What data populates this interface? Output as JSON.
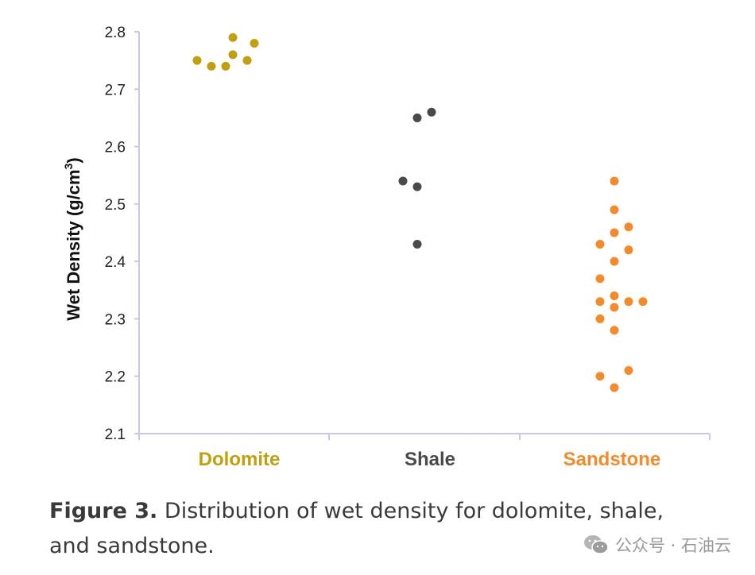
{
  "chart_data": {
    "type": "scatter",
    "ylabel": "Wet Density (g/cm",
    "ylabel_sup": "3",
    "ylabel_close": ")",
    "ylim": [
      2.1,
      2.8
    ],
    "yticks": [
      "2.1",
      "2.2",
      "2.3",
      "2.4",
      "2.5",
      "2.6",
      "2.7",
      "2.8"
    ],
    "grid": false,
    "categories": [
      "Dolomite",
      "Shale",
      "Sandstone"
    ],
    "series": [
      {
        "category": "Dolomite",
        "color": "#c0a00c",
        "points": [
          {
            "jitter": 0.0,
            "y": 2.79
          },
          {
            "jitter": 0.45,
            "y": 2.78
          },
          {
            "jitter": -0.75,
            "y": 2.75
          },
          {
            "jitter": -0.45,
            "y": 2.74
          },
          {
            "jitter": -0.15,
            "y": 2.74
          },
          {
            "jitter": 0.0,
            "y": 2.76
          },
          {
            "jitter": 0.3,
            "y": 2.75
          }
        ]
      },
      {
        "category": "Shale",
        "color": "#4a4a4a",
        "points": [
          {
            "jitter": 0.15,
            "y": 2.66
          },
          {
            "jitter": -0.15,
            "y": 2.65
          },
          {
            "jitter": -0.45,
            "y": 2.54
          },
          {
            "jitter": -0.15,
            "y": 2.53
          },
          {
            "jitter": -0.15,
            "y": 2.43
          }
        ]
      },
      {
        "category": "Sandstone",
        "color": "#f58a2a",
        "points": [
          {
            "jitter": 0.0,
            "y": 2.54
          },
          {
            "jitter": 0.0,
            "y": 2.49
          },
          {
            "jitter": 0.0,
            "y": 2.45
          },
          {
            "jitter": 0.3,
            "y": 2.46
          },
          {
            "jitter": -0.3,
            "y": 2.43
          },
          {
            "jitter": 0.3,
            "y": 2.42
          },
          {
            "jitter": 0.0,
            "y": 2.4
          },
          {
            "jitter": -0.3,
            "y": 2.37
          },
          {
            "jitter": -0.3,
            "y": 2.33
          },
          {
            "jitter": 0.0,
            "y": 2.34
          },
          {
            "jitter": 0.0,
            "y": 2.32
          },
          {
            "jitter": 0.3,
            "y": 2.33
          },
          {
            "jitter": 0.6,
            "y": 2.33
          },
          {
            "jitter": -0.3,
            "y": 2.3
          },
          {
            "jitter": 0.0,
            "y": 2.28
          },
          {
            "jitter": -0.3,
            "y": 2.2
          },
          {
            "jitter": 0.3,
            "y": 2.21
          },
          {
            "jitter": 0.0,
            "y": 2.18
          }
        ]
      }
    ]
  },
  "caption": {
    "label": "Figure 3.",
    "text": " Distribution of wet density for dolomite, shale, and sandstone."
  },
  "watermark": {
    "icon": "wechat-icon",
    "text": "公众号 · 石油云"
  }
}
